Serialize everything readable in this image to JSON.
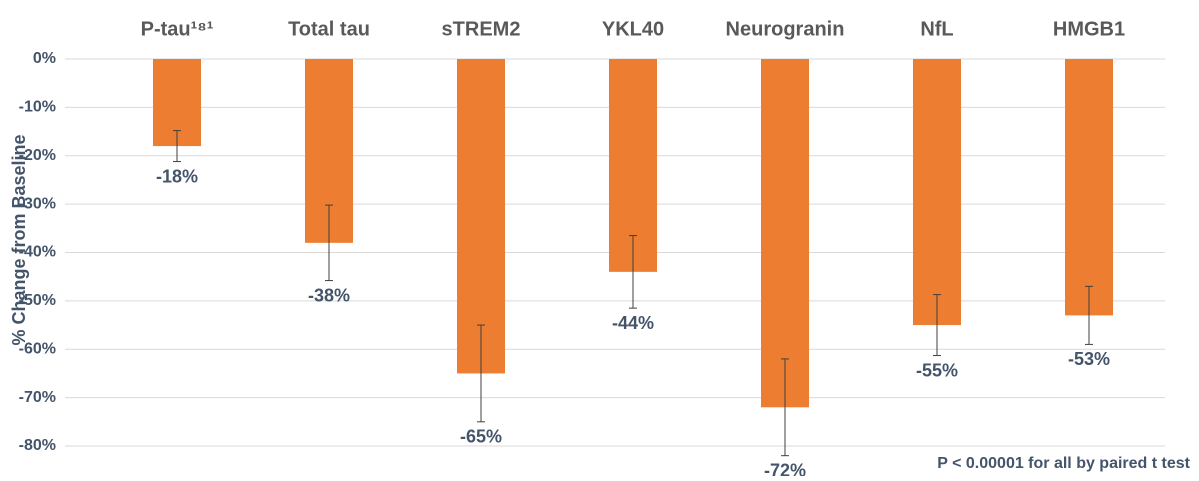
{
  "chart_data": {
    "type": "bar",
    "y_label": "% Change from Baseline",
    "categories": [
      "P-tau¹⁸¹",
      "Total tau",
      "sTREM2",
      "YKL40",
      "Neurogranin",
      "NfL",
      "HMGB1"
    ],
    "values": [
      -18,
      -38,
      -65,
      -44,
      -72,
      -55,
      -53
    ],
    "value_labels": [
      "-18%",
      "-38%",
      "-65%",
      "-44%",
      "-72%",
      "-55%",
      "-53%"
    ],
    "errors": [
      3.2,
      7.8,
      10,
      7.5,
      10,
      6.3,
      6
    ],
    "color": "#ed7d31",
    "ylim": [
      -80,
      0
    ],
    "yticks": [
      {
        "value": 0,
        "label": "0%"
      },
      {
        "value": -10,
        "label": "-10%"
      },
      {
        "value": -20,
        "label": "-20%"
      },
      {
        "value": -30,
        "label": "-30%"
      },
      {
        "value": -40,
        "label": "-40%"
      },
      {
        "value": -50,
        "label": "-50%"
      },
      {
        "value": -60,
        "label": "-60%"
      },
      {
        "value": -70,
        "label": "-70%"
      },
      {
        "value": -80,
        "label": "-80%"
      }
    ],
    "grid": true,
    "footnote": "P < 0.00001 for all by paired t test"
  }
}
